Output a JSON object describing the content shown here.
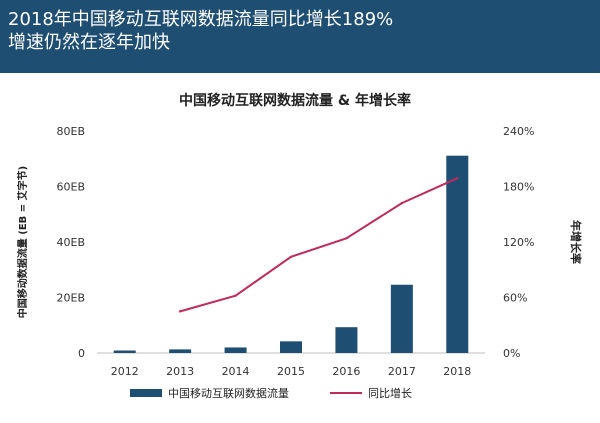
{
  "header": {
    "title_line1": "2018年中国移动互联网数据流量同比增长189%",
    "title_line2": "增速仍然在逐年加快"
  },
  "colors": {
    "header_bg": "#1f4e73",
    "bar": "#1f4e73",
    "line": "#c0285e"
  },
  "chart_data": {
    "type": "bar",
    "title": "中国移动互联网数据流量 & 年增长率",
    "categories": [
      "2012",
      "2013",
      "2014",
      "2015",
      "2016",
      "2017",
      "2018"
    ],
    "series": [
      {
        "name": "中国移动互联网数据流量",
        "type": "bar",
        "axis": "left",
        "values": [
          0.9,
          1.3,
          2.0,
          4.2,
          9.3,
          24.6,
          71.1
        ]
      },
      {
        "name": "同比增长",
        "type": "line",
        "axis": "right",
        "values": [
          null,
          45,
          62,
          104,
          124,
          162,
          189
        ]
      }
    ],
    "ylabel": "中国移动数据流量 (EB = 艾字节)",
    "ylabel_right": "年增长率",
    "ylim": [
      0,
      80
    ],
    "ylim_right": [
      0,
      240
    ],
    "yticks": [
      "0",
      "20EB",
      "40EB",
      "60EB",
      "80EB"
    ],
    "yticks_right": [
      "0%",
      "60%",
      "120%",
      "180%",
      "240%"
    ],
    "legend_position": "bottom",
    "grid": false
  }
}
